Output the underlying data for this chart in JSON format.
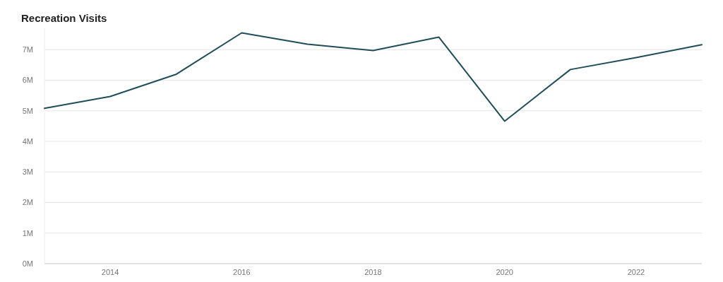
{
  "chart_data": {
    "type": "line",
    "title": "Recreation Visits",
    "x": [
      2013,
      2014,
      2015,
      2016,
      2017,
      2018,
      2019,
      2020,
      2021,
      2022,
      2023
    ],
    "series": [
      {
        "color": "#1f4e5a",
        "values": [
          5.08,
          5.47,
          6.19,
          7.55,
          7.18,
          6.97,
          7.41,
          4.66,
          6.35,
          6.74,
          7.16
        ]
      }
    ],
    "xlim": [
      2013,
      2023
    ],
    "ylim": [
      0,
      7.7
    ],
    "xticks": [
      2014,
      2016,
      2018,
      2020,
      2022
    ],
    "yticks": [
      {
        "value": 0,
        "label": "0M"
      },
      {
        "value": 1,
        "label": "1M"
      },
      {
        "value": 2,
        "label": "2M"
      },
      {
        "value": 3,
        "label": "3M"
      },
      {
        "value": 4,
        "label": "4M"
      },
      {
        "value": 5,
        "label": "5M"
      },
      {
        "value": 6,
        "label": "6M"
      },
      {
        "value": 7,
        "label": "7M"
      }
    ],
    "grid": "y",
    "marker": "none",
    "line_style": "solid"
  }
}
